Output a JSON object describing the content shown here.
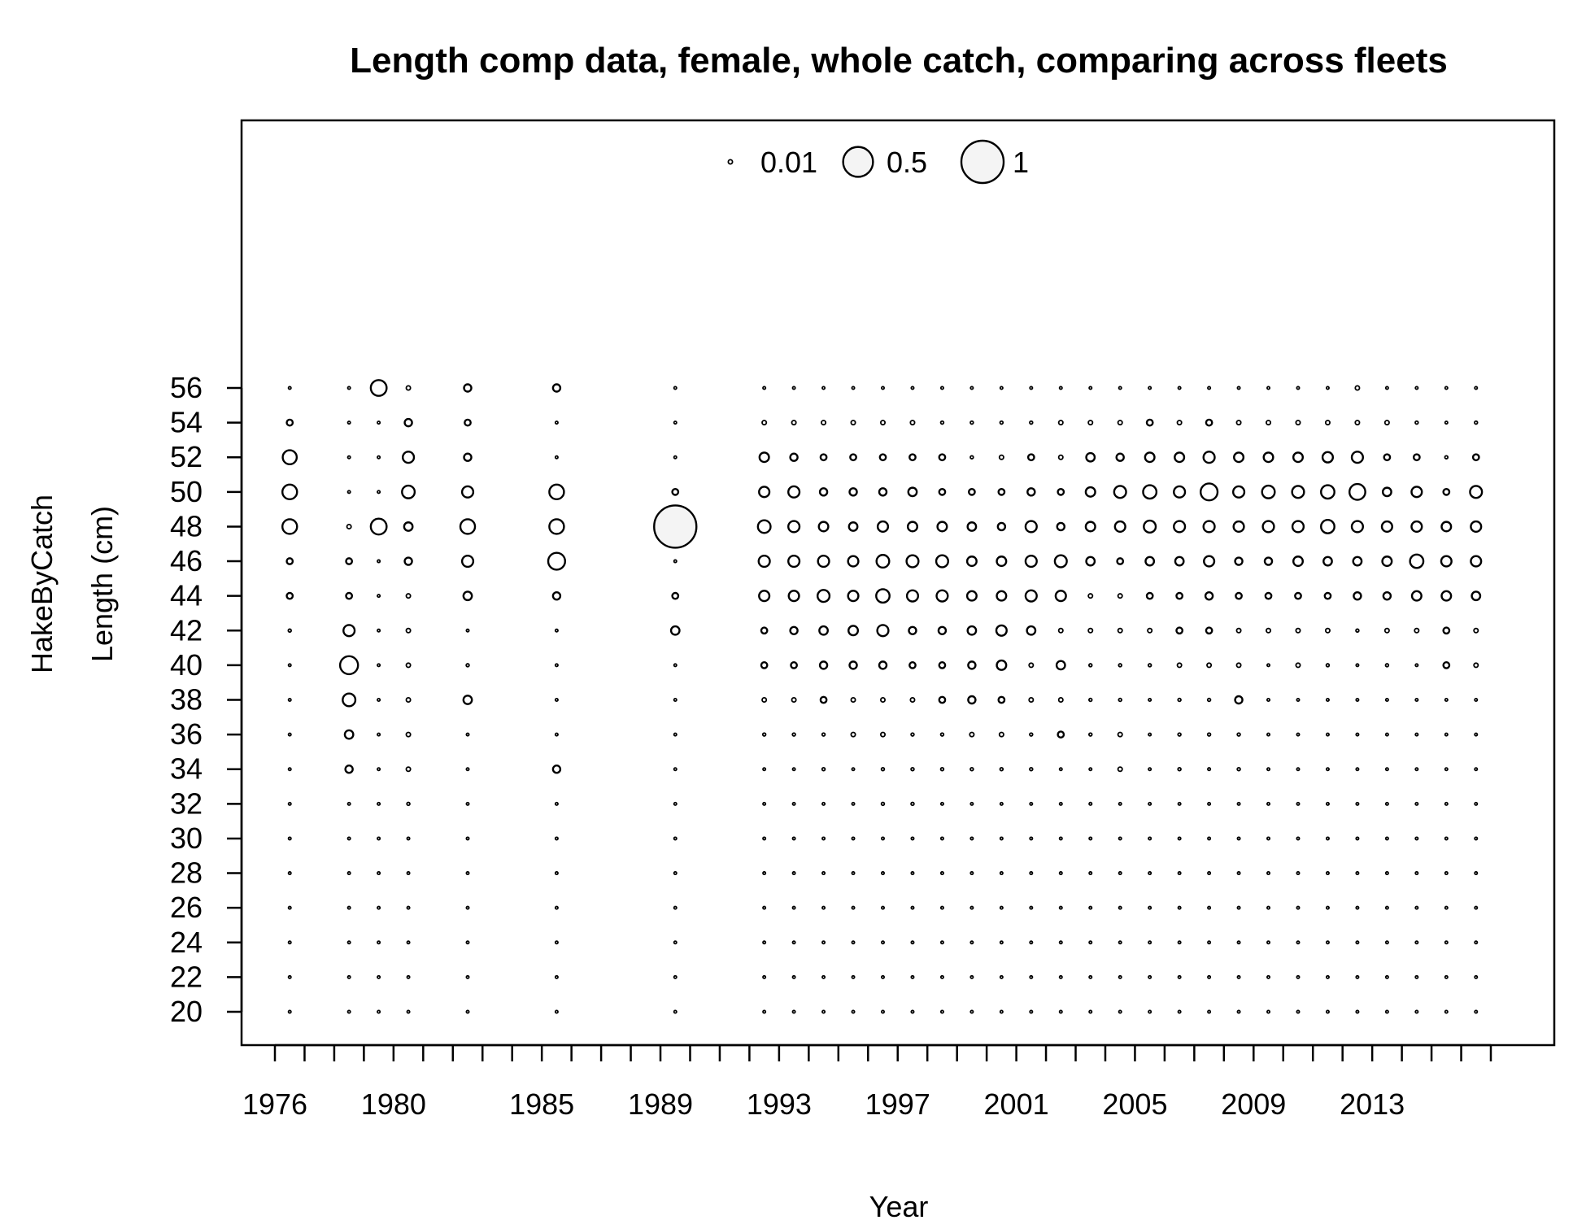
{
  "chart_data": {
    "type": "scatter",
    "subtype": "bubble",
    "title": "Length comp data, female, whole catch, comparing across fleets",
    "xlabel": "Year",
    "ylabel_fleet": "HakeByCatch",
    "ylabel": "Length (cm)",
    "xlim": [
      1975,
      2018
    ],
    "ylim": [
      18,
      80
    ],
    "x_ticks": [
      1976,
      1977,
      1978,
      1979,
      1980,
      1981,
      1982,
      1983,
      1984,
      1985,
      1986,
      1987,
      1988,
      1989,
      1990,
      1991,
      1992,
      1993,
      1994,
      1995,
      1996,
      1997,
      1998,
      1999,
      2000,
      2001,
      2002,
      2003,
      2004,
      2005,
      2006,
      2007,
      2008,
      2009,
      2010,
      2011,
      2012,
      2013,
      2014,
      2015,
      2016,
      2017
    ],
    "x_tick_labels": [
      "1976",
      "1980",
      "1985",
      "1989",
      "1993",
      "1997",
      "2001",
      "2005",
      "2009",
      "2013"
    ],
    "y_ticks": [
      20,
      22,
      24,
      26,
      28,
      30,
      32,
      34,
      36,
      38,
      40,
      42,
      44,
      46,
      48,
      50,
      52,
      54,
      56
    ],
    "y_tick_labels": [
      "20",
      "22",
      "24",
      "26",
      "28",
      "30",
      "32",
      "34",
      "36",
      "38",
      "40",
      "42",
      "44",
      "46",
      "48",
      "50",
      "52",
      "54",
      "56"
    ],
    "legend": {
      "position": "top-center",
      "entries": [
        {
          "label": "0.01",
          "value": 0.01
        },
        {
          "label": "0.5",
          "value": 0.5
        },
        {
          "label": "1",
          "value": 1
        }
      ]
    },
    "lengths": [
      20,
      22,
      24,
      26,
      28,
      30,
      32,
      34,
      36,
      38,
      40,
      42,
      44,
      46,
      48,
      50,
      52,
      54,
      56
    ],
    "proportions_order": "values listed for lengths 20 to 56 in steps of 2",
    "years": [
      {
        "year": 1976.5,
        "values": [
          0.001,
          0.001,
          0.001,
          0.001,
          0.001,
          0.001,
          0.001,
          0.001,
          0.001,
          0.001,
          0.001,
          0.005,
          0.02,
          0.02,
          0.12,
          0.12,
          0.11,
          0.02,
          0.002
        ]
      },
      {
        "year": 1978.5,
        "values": [
          0.001,
          0.001,
          0.001,
          0.001,
          0.001,
          0.001,
          0.001,
          0.03,
          0.04,
          0.09,
          0.18,
          0.07,
          0.02,
          0.02,
          0.01,
          0.001,
          0.001,
          0.001,
          0.001
        ]
      },
      {
        "year": 1979.5,
        "values": [
          0.001,
          0.001,
          0.001,
          0.001,
          0.001,
          0.001,
          0.001,
          0.001,
          0.001,
          0.001,
          0.001,
          0.001,
          0.001,
          0.001,
          0.14,
          0.001,
          0.001,
          0.001,
          0.14
        ]
      },
      {
        "year": 1980.5,
        "values": [
          0.001,
          0.001,
          0.001,
          0.001,
          0.001,
          0.001,
          0.005,
          0.01,
          0.01,
          0.01,
          0.01,
          0.01,
          0.01,
          0.03,
          0.04,
          0.09,
          0.07,
          0.03,
          0.01
        ]
      },
      {
        "year": 1982.5,
        "values": [
          0.001,
          0.001,
          0.001,
          0.001,
          0.001,
          0.001,
          0.001,
          0.001,
          0.001,
          0.04,
          0.005,
          0.001,
          0.04,
          0.07,
          0.12,
          0.07,
          0.03,
          0.02,
          0.03
        ]
      },
      {
        "year": 1985.5,
        "values": [
          0.001,
          0.001,
          0.001,
          0.001,
          0.001,
          0.001,
          0.001,
          0.03,
          0.001,
          0.001,
          0.001,
          0.001,
          0.03,
          0.16,
          0.12,
          0.12,
          0.001,
          0.001,
          0.03
        ]
      },
      {
        "year": 1989.5,
        "values": [
          0.001,
          0.001,
          0.001,
          0.001,
          0.001,
          0.001,
          0.001,
          0.001,
          0.001,
          0.001,
          0.001,
          0.04,
          0.02,
          0.001,
          1,
          0.02,
          0.001,
          0.001,
          0.001
        ]
      },
      {
        "year": 1992.5,
        "values": [
          0.001,
          0.001,
          0.001,
          0.001,
          0.001,
          0.001,
          0.001,
          0.002,
          0.005,
          0.01,
          0.02,
          0.02,
          0.06,
          0.07,
          0.09,
          0.06,
          0.05,
          0.01,
          0.004
        ]
      },
      {
        "year": 1993.5,
        "values": [
          0.001,
          0.001,
          0.001,
          0.001,
          0.001,
          0.001,
          0.001,
          0.001,
          0.005,
          0.01,
          0.02,
          0.03,
          0.06,
          0.07,
          0.07,
          0.07,
          0.03,
          0.01,
          0.002
        ]
      },
      {
        "year": 1994.5,
        "values": [
          0.001,
          0.001,
          0.001,
          0.001,
          0.001,
          0.001,
          0.001,
          0.005,
          0.005,
          0.02,
          0.03,
          0.04,
          0.08,
          0.07,
          0.05,
          0.03,
          0.02,
          0.01,
          0.002
        ]
      },
      {
        "year": 1995.5,
        "values": [
          0.001,
          0.001,
          0.001,
          0.001,
          0.001,
          0.001,
          0.001,
          0.002,
          0.01,
          0.01,
          0.03,
          0.05,
          0.06,
          0.06,
          0.04,
          0.03,
          0.02,
          0.01,
          0.002
        ]
      },
      {
        "year": 1996.5,
        "values": [
          0.001,
          0.001,
          0.001,
          0.001,
          0.001,
          0.001,
          0.005,
          0.005,
          0.01,
          0.01,
          0.03,
          0.07,
          0.1,
          0.09,
          0.06,
          0.03,
          0.02,
          0.01,
          0.002
        ]
      },
      {
        "year": 1997.5,
        "values": [
          0.001,
          0.001,
          0.001,
          0.001,
          0.001,
          0.001,
          0.005,
          0.005,
          0.005,
          0.01,
          0.02,
          0.03,
          0.07,
          0.08,
          0.05,
          0.04,
          0.02,
          0.01,
          0.002
        ]
      },
      {
        "year": 1998.5,
        "values": [
          0.001,
          0.001,
          0.001,
          0.001,
          0.001,
          0.001,
          0.001,
          0.005,
          0.005,
          0.02,
          0.02,
          0.03,
          0.07,
          0.08,
          0.05,
          0.02,
          0.02,
          0.005,
          0.002
        ]
      },
      {
        "year": 1999.5,
        "values": [
          0.001,
          0.001,
          0.001,
          0.001,
          0.001,
          0.001,
          0.001,
          0.005,
          0.01,
          0.03,
          0.03,
          0.04,
          0.05,
          0.05,
          0.04,
          0.02,
          0.005,
          0.005,
          0.002
        ]
      },
      {
        "year": 2000.5,
        "values": [
          0.001,
          0.001,
          0.001,
          0.001,
          0.001,
          0.001,
          0.002,
          0.005,
          0.01,
          0.02,
          0.05,
          0.06,
          0.05,
          0.05,
          0.03,
          0.02,
          0.01,
          0.005,
          0.002
        ]
      },
      {
        "year": 2001.5,
        "values": [
          0.001,
          0.001,
          0.001,
          0.001,
          0.001,
          0.001,
          0.001,
          0.005,
          0.005,
          0.01,
          0.01,
          0.04,
          0.07,
          0.07,
          0.07,
          0.03,
          0.02,
          0.005,
          0.002
        ]
      },
      {
        "year": 2002.5,
        "values": [
          0.001,
          0.001,
          0.001,
          0.001,
          0.001,
          0.001,
          0.001,
          0.001,
          0.02,
          0.01,
          0.04,
          0.01,
          0.06,
          0.08,
          0.03,
          0.02,
          0.01,
          0.01,
          0.002
        ]
      },
      {
        "year": 2003.5,
        "values": [
          0.001,
          0.001,
          0.001,
          0.001,
          0.001,
          0.001,
          0.004,
          0.001,
          0.005,
          0.005,
          0.005,
          0.01,
          0.01,
          0.04,
          0.05,
          0.05,
          0.04,
          0.01,
          0.002
        ]
      },
      {
        "year": 2004.5,
        "values": [
          0.001,
          0.001,
          0.001,
          0.001,
          0.001,
          0.001,
          0.001,
          0.01,
          0.01,
          0.005,
          0.005,
          0.01,
          0.01,
          0.02,
          0.06,
          0.08,
          0.03,
          0.01,
          0.002
        ]
      },
      {
        "year": 2005.5,
        "values": [
          0.001,
          0.001,
          0.001,
          0.001,
          0.001,
          0.001,
          0.001,
          0.001,
          0.001,
          0.003,
          0.005,
          0.01,
          0.02,
          0.04,
          0.08,
          0.1,
          0.05,
          0.02,
          0.003
        ]
      },
      {
        "year": 2006.5,
        "values": [
          0.001,
          0.001,
          0.001,
          0.001,
          0.001,
          0.001,
          0.001,
          0.005,
          0.005,
          0.005,
          0.01,
          0.02,
          0.02,
          0.04,
          0.07,
          0.07,
          0.05,
          0.01,
          0.001
        ]
      },
      {
        "year": 2007.5,
        "values": [
          0.001,
          0.001,
          0.001,
          0.001,
          0.001,
          0.001,
          0.001,
          0.004,
          0.005,
          0.005,
          0.01,
          0.02,
          0.03,
          0.06,
          0.07,
          0.16,
          0.07,
          0.02,
          0.004
        ]
      },
      {
        "year": 2008.5,
        "values": [
          0.001,
          0.001,
          0.001,
          0.001,
          0.001,
          0.001,
          0.001,
          0.005,
          0.005,
          0.03,
          0.01,
          0.01,
          0.02,
          0.03,
          0.06,
          0.07,
          0.05,
          0.01,
          0.002
        ]
      },
      {
        "year": 2009.5,
        "values": [
          0.001,
          0.001,
          0.001,
          0.001,
          0.001,
          0.001,
          0.001,
          0.001,
          0.001,
          0.004,
          0.003,
          0.01,
          0.02,
          0.03,
          0.07,
          0.09,
          0.05,
          0.01,
          0.002
        ]
      },
      {
        "year": 2010.5,
        "values": [
          0.001,
          0.001,
          0.001,
          0.001,
          0.001,
          0.001,
          0.001,
          0.001,
          0.001,
          0.001,
          0.01,
          0.01,
          0.02,
          0.05,
          0.07,
          0.08,
          0.05,
          0.01,
          0.002
        ]
      },
      {
        "year": 2011.5,
        "values": [
          0.001,
          0.001,
          0.001,
          0.001,
          0.001,
          0.001,
          0.001,
          0.001,
          0.003,
          0.002,
          0.005,
          0.01,
          0.02,
          0.04,
          0.1,
          0.1,
          0.06,
          0.01,
          0.003
        ]
      },
      {
        "year": 2012.5,
        "values": [
          0.001,
          0.001,
          0.001,
          0.001,
          0.001,
          0.001,
          0.001,
          0.001,
          0.001,
          0.001,
          0.001,
          0.005,
          0.03,
          0.04,
          0.07,
          0.14,
          0.07,
          0.01,
          0.01
        ]
      },
      {
        "year": 2013.5,
        "values": [
          0.001,
          0.001,
          0.001,
          0.001,
          0.001,
          0.001,
          0.001,
          0.001,
          0.003,
          0.001,
          0.005,
          0.01,
          0.03,
          0.05,
          0.06,
          0.04,
          0.02,
          0.01,
          0.002
        ]
      },
      {
        "year": 2014.5,
        "values": [
          0.001,
          0.001,
          0.001,
          0.001,
          0.001,
          0.001,
          0.001,
          0.001,
          0.001,
          0.003,
          0.003,
          0.01,
          0.05,
          0.1,
          0.06,
          0.06,
          0.02,
          0.005,
          0.002
        ]
      },
      {
        "year": 2015.5,
        "values": [
          0.001,
          0.001,
          0.001,
          0.001,
          0.001,
          0.001,
          0.001,
          0.001,
          0.001,
          0.003,
          0.02,
          0.02,
          0.05,
          0.06,
          0.05,
          0.02,
          0.005,
          0.002,
          0.002
        ]
      },
      {
        "year": 2016.5,
        "values": [
          0.001,
          0.001,
          0.001,
          0.001,
          0.001,
          0.001,
          0.001,
          0.001,
          0.003,
          0.003,
          0.01,
          0.01,
          0.04,
          0.06,
          0.06,
          0.08,
          0.02,
          0.005,
          0.002
        ]
      }
    ]
  }
}
